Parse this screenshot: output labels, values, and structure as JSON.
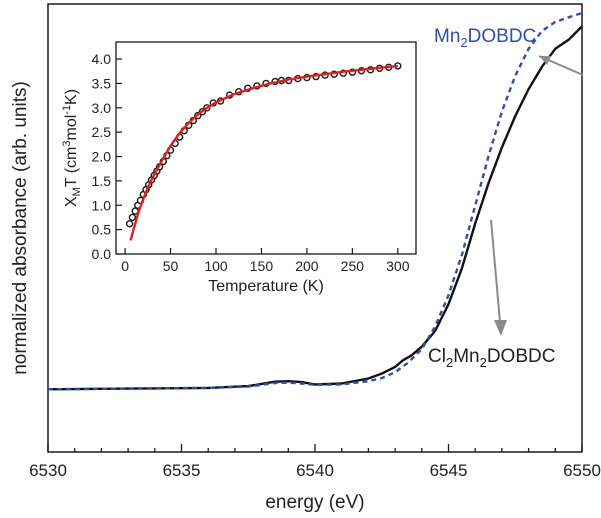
{
  "colors": {
    "background": "#ffffff",
    "axes": "#1a1a1a",
    "cl2mn2_line": "#111111",
    "mn2_line": "#2f4fa8",
    "arrow": "#8a8a8a",
    "inset_points": "#1a1a1a",
    "inset_fit": "#e02020"
  },
  "labels": {
    "mn2_label": "Mn2DOBDC",
    "mn2_parts": [
      "Mn",
      "2",
      "DOBDC"
    ],
    "cl_label": "Cl2Mn2DOBDC",
    "cl_parts": [
      "Cl",
      "2",
      "Mn",
      "2",
      "DOBDC"
    ],
    "inset_ylabel": "XMT (cm3mol-1K)",
    "inset_ylabel_parts": [
      "X",
      "M",
      "T (cm",
      "3",
      "mol",
      "-1",
      "K)"
    ]
  },
  "chart_data": [
    {
      "type": "line",
      "xlabel": "energy (eV)",
      "ylabel": "normalized absorbance (arb. units)",
      "xlim": [
        6530,
        6550
      ],
      "ylim": [
        0,
        1.0
      ],
      "x_ticks": [
        6530,
        6535,
        6540,
        6545,
        6550
      ],
      "grid": false,
      "legend": "none",
      "series": [
        {
          "name": "Cl2Mn2DOBDC",
          "line_style": "solid",
          "x": [
            6530,
            6532,
            6534,
            6536,
            6537.5,
            6538.5,
            6539,
            6539.5,
            6540,
            6541,
            6542,
            6542.5,
            6543,
            6543.3,
            6543.6,
            6544,
            6544.5,
            6545,
            6545.5,
            6546,
            6546.5,
            6547,
            6547.5,
            6548,
            6548.5,
            6549,
            6549.5,
            6550
          ],
          "y": [
            0.14,
            0.141,
            0.142,
            0.143,
            0.147,
            0.157,
            0.158,
            0.156,
            0.151,
            0.153,
            0.164,
            0.175,
            0.19,
            0.205,
            0.215,
            0.235,
            0.27,
            0.33,
            0.41,
            0.51,
            0.6,
            0.68,
            0.75,
            0.81,
            0.86,
            0.9,
            0.92,
            0.95
          ]
        },
        {
          "name": "Mn2DOBDC",
          "line_style": "dashed",
          "x": [
            6530,
            6532,
            6534,
            6536,
            6537.5,
            6538.5,
            6539,
            6539.5,
            6540,
            6541,
            6542,
            6542.5,
            6543,
            6543.5,
            6544,
            6544.5,
            6545,
            6545.5,
            6546,
            6546.5,
            6547,
            6547.5,
            6548,
            6548.5,
            6549,
            6549.5,
            6550
          ],
          "y": [
            0.14,
            0.141,
            0.142,
            0.143,
            0.146,
            0.154,
            0.155,
            0.153,
            0.15,
            0.151,
            0.158,
            0.165,
            0.178,
            0.2,
            0.23,
            0.28,
            0.35,
            0.44,
            0.55,
            0.66,
            0.76,
            0.84,
            0.9,
            0.94,
            0.96,
            0.97,
            0.98
          ]
        }
      ]
    },
    {
      "type": "scatter",
      "xlabel": "Temperature (K)",
      "ylabel": "XMT (cm3mol-1K)",
      "xlim": [
        -10,
        320
      ],
      "ylim": [
        0,
        4.35
      ],
      "x_ticks": [
        0,
        50,
        100,
        150,
        200,
        250,
        300
      ],
      "y_ticks": [
        0.0,
        0.5,
        1.0,
        1.5,
        2.0,
        2.5,
        3.0,
        3.5,
        4.0
      ],
      "grid": false,
      "legend": "none",
      "series": [
        {
          "name": "data",
          "marker": "open-circle",
          "x": [
            5,
            8,
            11,
            14,
            17,
            20,
            23,
            26,
            29,
            32,
            35,
            38,
            42,
            46,
            50,
            55,
            60,
            65,
            70,
            75,
            80,
            85,
            90,
            97,
            105,
            115,
            125,
            135,
            145,
            155,
            165,
            172,
            180,
            190,
            200,
            210,
            220,
            230,
            240,
            250,
            260,
            270,
            280,
            290,
            300
          ],
          "y": [
            0.62,
            0.75,
            0.88,
            1.0,
            1.1,
            1.22,
            1.32,
            1.42,
            1.52,
            1.61,
            1.7,
            1.79,
            1.9,
            2.02,
            2.13,
            2.27,
            2.4,
            2.53,
            2.64,
            2.74,
            2.84,
            2.92,
            3.0,
            3.1,
            3.14,
            3.26,
            3.33,
            3.4,
            3.45,
            3.5,
            3.54,
            3.56,
            3.56,
            3.6,
            3.62,
            3.64,
            3.67,
            3.69,
            3.71,
            3.73,
            3.76,
            3.78,
            3.81,
            3.83,
            3.86
          ]
        },
        {
          "name": "fit",
          "line_style": "solid",
          "x": [
            6,
            10,
            15,
            20,
            25,
            30,
            40,
            50,
            60,
            70,
            80,
            90,
            100,
            120,
            140,
            160,
            180,
            200,
            220,
            240,
            260,
            280,
            300
          ],
          "y": [
            0.28,
            0.55,
            0.87,
            1.13,
            1.36,
            1.56,
            1.9,
            2.22,
            2.48,
            2.69,
            2.86,
            3.0,
            3.11,
            3.28,
            3.4,
            3.5,
            3.58,
            3.64,
            3.69,
            3.74,
            3.78,
            3.82,
            3.86
          ]
        }
      ]
    }
  ]
}
